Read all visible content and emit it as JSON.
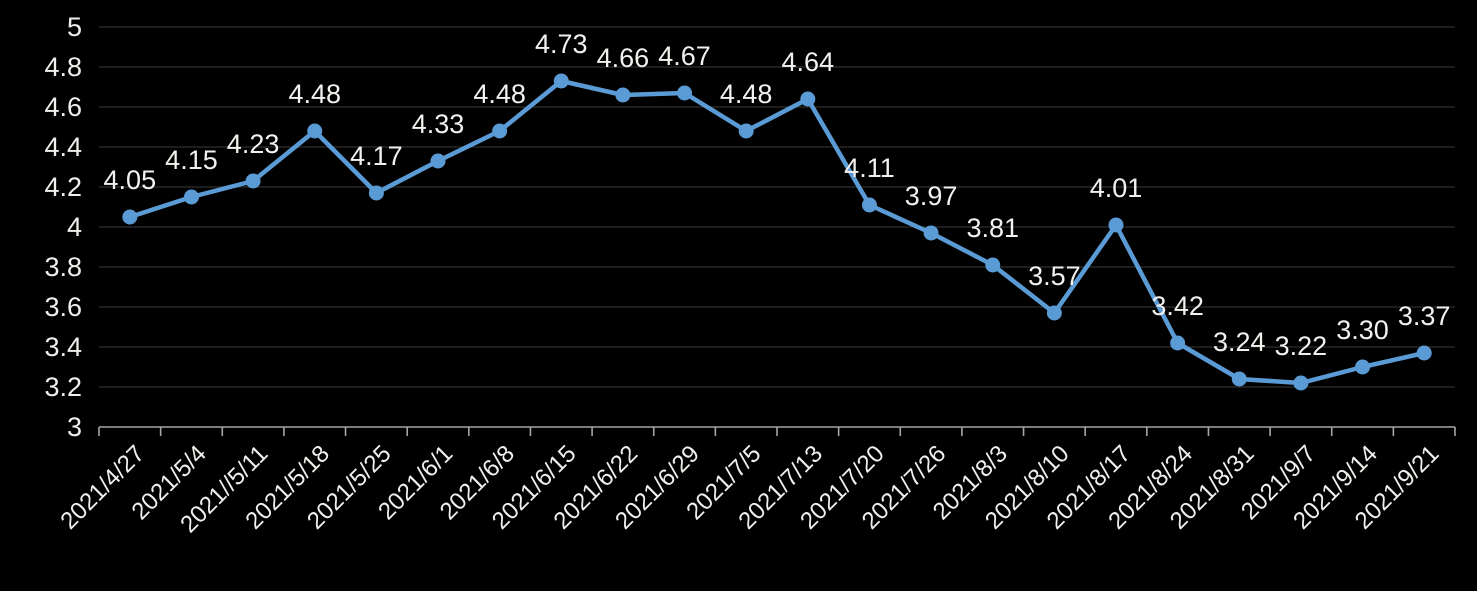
{
  "chart": {
    "background_color": "#000000",
    "series_color": "#5B9BD5",
    "grid_color": "#272727",
    "axis_color": "#a6a6a6",
    "text_color": "#f0efec",
    "data_label_color": "#f2f1ee"
  },
  "chart_data": {
    "type": "line",
    "title": "",
    "xlabel": "",
    "ylabel": "",
    "legend": "none",
    "grid": true,
    "marker": "circle",
    "ylim": [
      3,
      5
    ],
    "ytick_step": 0.2,
    "ytick_labels": [
      "3",
      "3.2",
      "3.4",
      "3.6",
      "3.8",
      "4",
      "4.2",
      "4.4",
      "4.6",
      "4.8",
      "5"
    ],
    "categories": [
      "2021/4/27",
      "2021/5/4",
      "2021//5/11",
      "2021/5/18",
      "2021/5/25",
      "2021/6/1",
      "2021/6/8",
      "2021/6/15",
      "2021/6/22",
      "2021/6/29",
      "2021/7/5",
      "2021/7/13",
      "2021/7/20",
      "2021/7/26",
      "2021/8/3",
      "2021/8/10",
      "2021/8/17",
      "2021/8/24",
      "2021/8/31",
      "2021/9/7",
      "2021/9/14",
      "2021/9/21"
    ],
    "values": [
      4.05,
      4.15,
      4.23,
      4.48,
      4.17,
      4.33,
      4.48,
      4.73,
      4.66,
      4.67,
      4.48,
      4.64,
      4.11,
      3.97,
      3.81,
      3.57,
      4.01,
      3.42,
      3.24,
      3.22,
      3.3,
      3.37
    ],
    "point_labels": [
      "4.05",
      "4.15",
      "4.23",
      "4.48",
      "4.17",
      "4.33",
      "4.48",
      "4.73",
      "4.66",
      "4.67",
      "4.48",
      "4.64",
      "4.11",
      "3.97",
      "3.81",
      "3.57",
      "4.01",
      "3.42",
      "3.24",
      "3.22",
      "3.30",
      "3.37"
    ]
  }
}
